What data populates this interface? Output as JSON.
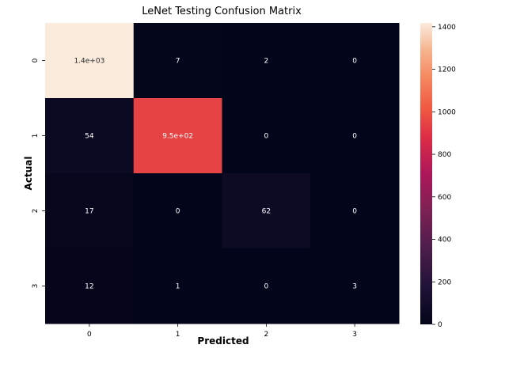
{
  "chart_data": {
    "type": "heatmap",
    "title": "LeNet Testing Confusion Matrix",
    "xlabel": "Predicted",
    "ylabel": "Actual",
    "x_categories": [
      "0",
      "1",
      "2",
      "3"
    ],
    "y_categories": [
      "0",
      "1",
      "2",
      "3"
    ],
    "values": [
      [
        1418,
        7,
        2,
        0
      ],
      [
        54,
        950,
        0,
        0
      ],
      [
        17,
        0,
        62,
        0
      ],
      [
        12,
        1,
        0,
        3
      ]
    ],
    "annotations": [
      [
        "1.4e+03",
        "7",
        "2",
        "0"
      ],
      [
        "54",
        "9.5e+02",
        "0",
        "0"
      ],
      [
        "17",
        "0",
        "62",
        "0"
      ],
      [
        "12",
        "1",
        "0",
        "3"
      ]
    ],
    "colorbar": {
      "range": [
        0,
        1418
      ],
      "ticks": [
        0,
        200,
        400,
        600,
        800,
        1000,
        1200,
        1400
      ],
      "tick_labels": [
        "0",
        "200",
        "400",
        "600",
        "800",
        "1000",
        "1200",
        "1400"
      ],
      "colormap": "rocket"
    }
  }
}
